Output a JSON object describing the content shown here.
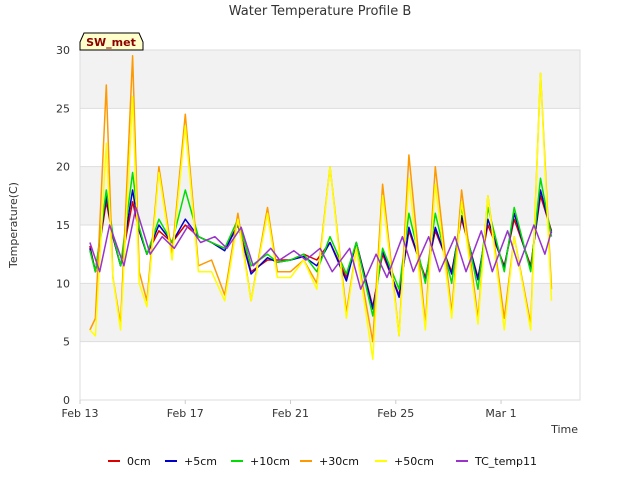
{
  "chart_data": {
    "type": "line",
    "title": "Water Temperature Profile B",
    "xlabel": "Time",
    "ylabel": "Temperature(C)",
    "badge": "SW_met",
    "ylim": [
      0,
      30
    ],
    "yticks": [
      0,
      5,
      10,
      15,
      20,
      25,
      30
    ],
    "xlim": [
      "2023-02-13",
      "2023-03-04"
    ],
    "xticks": [
      {
        "date": "2023-02-13",
        "label": "Feb 13"
      },
      {
        "date": "2023-02-17",
        "label": "Feb 17"
      },
      {
        "date": "2023-02-21",
        "label": "Feb 21"
      },
      {
        "date": "2023-02-25",
        "label": "Feb 25"
      },
      {
        "date": "2023-03-01",
        "label": "Mar 1"
      }
    ],
    "grid": true,
    "legend_position": "bottom",
    "series": [
      {
        "name": "0cm",
        "color": "#dd0000",
        "x": [
          "2023-02-13 09:00",
          "2023-02-13 14:00",
          "2023-02-14 00:00",
          "2023-02-14 06:00",
          "2023-02-14 13:00",
          "2023-02-15 00:00",
          "2023-02-15 06:00",
          "2023-02-15 13:00",
          "2023-02-16 00:00",
          "2023-02-16 12:00",
          "2023-02-17 00:00",
          "2023-02-17 12:00",
          "2023-02-18 00:00",
          "2023-02-18 12:00",
          "2023-02-19 00:00",
          "2023-02-19 12:00",
          "2023-02-20 03:00",
          "2023-02-20 12:00",
          "2023-02-21 00:00",
          "2023-02-21 12:00",
          "2023-02-22 00:00",
          "2023-02-22 12:00",
          "2023-02-23 03:00",
          "2023-02-23 12:00",
          "2023-02-24 03:00",
          "2023-02-24 12:00",
          "2023-02-25 03:00",
          "2023-02-25 12:00",
          "2023-02-26 03:00",
          "2023-02-26 12:00",
          "2023-02-27 03:00",
          "2023-02-27 12:00",
          "2023-02-28 03:00",
          "2023-02-28 12:00",
          "2023-03-01 03:00",
          "2023-03-01 12:00",
          "2023-03-02 03:00",
          "2023-03-02 12:00",
          "2023-03-02 22:00"
        ],
        "y": [
          13.2,
          11.0,
          17.0,
          14.0,
          11.5,
          17.0,
          14.5,
          12.5,
          14.5,
          13.5,
          15.0,
          14.0,
          13.5,
          13.0,
          15.0,
          11.0,
          12.0,
          12.0,
          12.0,
          12.5,
          12.0,
          13.5,
          10.5,
          13.5,
          8.0,
          12.5,
          9.0,
          14.5,
          10.5,
          14.5,
          11.0,
          15.5,
          10.5,
          15.0,
          11.5,
          15.5,
          11.5,
          17.5,
          14.5
        ]
      },
      {
        "name": "+5cm",
        "color": "#0000cc",
        "x": [
          "2023-02-13 09:00",
          "2023-02-13 14:00",
          "2023-02-14 00:00",
          "2023-02-14 06:00",
          "2023-02-14 13:00",
          "2023-02-15 00:00",
          "2023-02-15 06:00",
          "2023-02-15 13:00",
          "2023-02-16 00:00",
          "2023-02-16 12:00",
          "2023-02-17 00:00",
          "2023-02-17 12:00",
          "2023-02-18 00:00",
          "2023-02-18 12:00",
          "2023-02-19 00:00",
          "2023-02-19 12:00",
          "2023-02-20 03:00",
          "2023-02-20 12:00",
          "2023-02-21 00:00",
          "2023-02-21 12:00",
          "2023-02-22 00:00",
          "2023-02-22 12:00",
          "2023-02-23 03:00",
          "2023-02-23 12:00",
          "2023-02-24 03:00",
          "2023-02-24 12:00",
          "2023-02-25 03:00",
          "2023-02-25 12:00",
          "2023-02-26 03:00",
          "2023-02-26 12:00",
          "2023-02-27 03:00",
          "2023-02-27 12:00",
          "2023-02-28 03:00",
          "2023-02-28 12:00",
          "2023-03-01 03:00",
          "2023-03-01 12:00",
          "2023-03-02 03:00",
          "2023-03-02 12:00",
          "2023-03-02 22:00"
        ],
        "y": [
          13.0,
          11.0,
          17.5,
          14.0,
          11.5,
          18.0,
          14.5,
          12.5,
          15.0,
          13.5,
          15.5,
          14.0,
          13.5,
          12.8,
          15.0,
          10.8,
          12.2,
          11.8,
          12.0,
          12.3,
          11.5,
          13.5,
          10.2,
          13.5,
          7.8,
          12.8,
          8.8,
          14.8,
          10.3,
          14.8,
          10.8,
          15.8,
          10.3,
          15.5,
          11.3,
          16.0,
          11.2,
          18.0,
          14.3
        ]
      },
      {
        "name": "+10cm",
        "color": "#00dd00",
        "x": [
          "2023-02-13 09:00",
          "2023-02-13 14:00",
          "2023-02-14 00:00",
          "2023-02-14 06:00",
          "2023-02-14 13:00",
          "2023-02-15 00:00",
          "2023-02-15 06:00",
          "2023-02-15 13:00",
          "2023-02-16 00:00",
          "2023-02-16 12:00",
          "2023-02-17 00:00",
          "2023-02-17 12:00",
          "2023-02-18 00:00",
          "2023-02-18 12:00",
          "2023-02-19 00:00",
          "2023-02-19 12:00",
          "2023-02-20 03:00",
          "2023-02-20 12:00",
          "2023-02-21 00:00",
          "2023-02-21 12:00",
          "2023-02-22 00:00",
          "2023-02-22 12:00",
          "2023-02-23 03:00",
          "2023-02-23 12:00",
          "2023-02-24 03:00",
          "2023-02-24 12:00",
          "2023-02-25 03:00",
          "2023-02-25 12:00",
          "2023-02-26 03:00",
          "2023-02-26 12:00",
          "2023-02-27 03:00",
          "2023-02-27 12:00",
          "2023-02-28 03:00",
          "2023-02-28 12:00",
          "2023-03-01 03:00",
          "2023-03-01 12:00",
          "2023-03-02 03:00",
          "2023-03-02 12:00",
          "2023-03-02 22:00"
        ],
        "y": [
          12.8,
          11.0,
          18.0,
          14.2,
          11.5,
          19.5,
          14.8,
          12.5,
          15.5,
          13.5,
          18.0,
          14.0,
          13.5,
          13.0,
          15.5,
          11.5,
          12.5,
          11.8,
          12.0,
          12.5,
          11.0,
          14.0,
          10.8,
          13.5,
          7.2,
          13.0,
          9.5,
          16.0,
          10.0,
          16.0,
          10.0,
          16.5,
          9.5,
          16.5,
          11.0,
          16.5,
          11.0,
          19.0,
          14.0
        ]
      },
      {
        "name": "+30cm",
        "color": "#ff9900",
        "x": [
          "2023-02-13 09:00",
          "2023-02-13 14:00",
          "2023-02-14 00:00",
          "2023-02-14 06:00",
          "2023-02-14 13:00",
          "2023-02-15 00:00",
          "2023-02-15 06:00",
          "2023-02-15 13:00",
          "2023-02-16 00:00",
          "2023-02-16 12:00",
          "2023-02-17 00:00",
          "2023-02-17 12:00",
          "2023-02-18 00:00",
          "2023-02-18 12:00",
          "2023-02-19 00:00",
          "2023-02-19 12:00",
          "2023-02-20 03:00",
          "2023-02-20 12:00",
          "2023-02-21 00:00",
          "2023-02-21 12:00",
          "2023-02-22 00:00",
          "2023-02-22 12:00",
          "2023-02-23 03:00",
          "2023-02-23 12:00",
          "2023-02-24 03:00",
          "2023-02-24 12:00",
          "2023-02-25 03:00",
          "2023-02-25 12:00",
          "2023-02-26 03:00",
          "2023-02-26 12:00",
          "2023-02-27 03:00",
          "2023-02-27 12:00",
          "2023-02-28 03:00",
          "2023-02-28 12:00",
          "2023-03-01 03:00",
          "2023-03-01 12:00",
          "2023-03-02 03:00",
          "2023-03-02 12:00",
          "2023-03-02 22:00"
        ],
        "y": [
          6.0,
          7.0,
          27.0,
          10.5,
          6.5,
          29.5,
          11.0,
          8.5,
          20.0,
          12.5,
          24.5,
          11.5,
          12.0,
          9.0,
          16.0,
          8.5,
          16.5,
          11.0,
          11.0,
          12.0,
          10.0,
          20.0,
          7.5,
          13.0,
          5.0,
          18.5,
          5.5,
          21.0,
          6.5,
          20.0,
          7.5,
          18.0,
          7.0,
          17.5,
          7.0,
          14.0,
          6.5,
          28.0,
          9.5
        ]
      },
      {
        "name": "+50cm",
        "color": "#ffff00",
        "x": [
          "2023-02-13 09:00",
          "2023-02-13 14:00",
          "2023-02-14 00:00",
          "2023-02-14 06:00",
          "2023-02-14 13:00",
          "2023-02-15 00:00",
          "2023-02-15 06:00",
          "2023-02-15 13:00",
          "2023-02-16 00:00",
          "2023-02-16 12:00",
          "2023-02-17 00:00",
          "2023-02-17 12:00",
          "2023-02-18 00:00",
          "2023-02-18 12:00",
          "2023-02-19 00:00",
          "2023-02-19 12:00",
          "2023-02-20 03:00",
          "2023-02-20 12:00",
          "2023-02-21 00:00",
          "2023-02-21 12:00",
          "2023-02-22 00:00",
          "2023-02-22 12:00",
          "2023-02-23 03:00",
          "2023-02-23 12:00",
          "2023-02-24 03:00",
          "2023-02-24 12:00",
          "2023-02-25 03:00",
          "2023-02-25 12:00",
          "2023-02-26 03:00",
          "2023-02-26 12:00",
          "2023-02-27 03:00",
          "2023-02-27 12:00",
          "2023-02-28 03:00",
          "2023-02-28 12:00",
          "2023-03-01 03:00",
          "2023-03-01 12:00",
          "2023-03-02 03:00",
          "2023-03-02 12:00",
          "2023-03-02 22:00"
        ],
        "y": [
          6.0,
          5.5,
          22.0,
          10.5,
          6.0,
          26.0,
          10.0,
          8.0,
          19.5,
          12.0,
          23.5,
          11.0,
          11.0,
          8.5,
          15.5,
          8.5,
          16.0,
          10.5,
          10.5,
          12.0,
          9.5,
          20.0,
          7.0,
          13.0,
          3.5,
          17.5,
          5.5,
          19.0,
          6.0,
          18.5,
          7.0,
          17.0,
          6.5,
          17.5,
          6.0,
          14.0,
          6.0,
          28.0,
          8.5
        ]
      },
      {
        "name": "TC_temp11",
        "color": "#9933cc",
        "x": [
          "2023-02-13 09:00",
          "2023-02-13 18:00",
          "2023-02-14 03:00",
          "2023-02-14 16:00",
          "2023-02-15 03:00",
          "2023-02-15 16:00",
          "2023-02-16 03:00",
          "2023-02-16 14:00",
          "2023-02-17 03:00",
          "2023-02-17 14:00",
          "2023-02-18 03:00",
          "2023-02-18 14:00",
          "2023-02-19 03:00",
          "2023-02-19 14:00",
          "2023-02-20 06:00",
          "2023-02-20 14:00",
          "2023-02-21 03:00",
          "2023-02-21 14:00",
          "2023-02-22 03:00",
          "2023-02-22 14:00",
          "2023-02-23 06:00",
          "2023-02-23 16:00",
          "2023-02-24 06:00",
          "2023-02-24 16:00",
          "2023-02-25 06:00",
          "2023-02-25 16:00",
          "2023-02-26 06:00",
          "2023-02-26 16:00",
          "2023-02-27 06:00",
          "2023-02-27 16:00",
          "2023-02-28 06:00",
          "2023-02-28 16:00",
          "2023-03-01 06:00",
          "2023-03-01 16:00",
          "2023-03-02 06:00",
          "2023-03-02 16:00",
          "2023-03-02 22:00"
        ],
        "y": [
          13.5,
          11.0,
          15.0,
          11.5,
          16.5,
          12.5,
          14.0,
          13.0,
          15.0,
          13.5,
          14.0,
          13.0,
          14.8,
          11.5,
          13.0,
          12.0,
          12.8,
          12.0,
          13.0,
          11.0,
          13.0,
          9.5,
          12.5,
          10.5,
          14.0,
          11.0,
          14.0,
          11.0,
          14.0,
          11.0,
          14.5,
          11.0,
          14.5,
          11.5,
          15.0,
          12.5,
          14.5
        ]
      }
    ]
  }
}
